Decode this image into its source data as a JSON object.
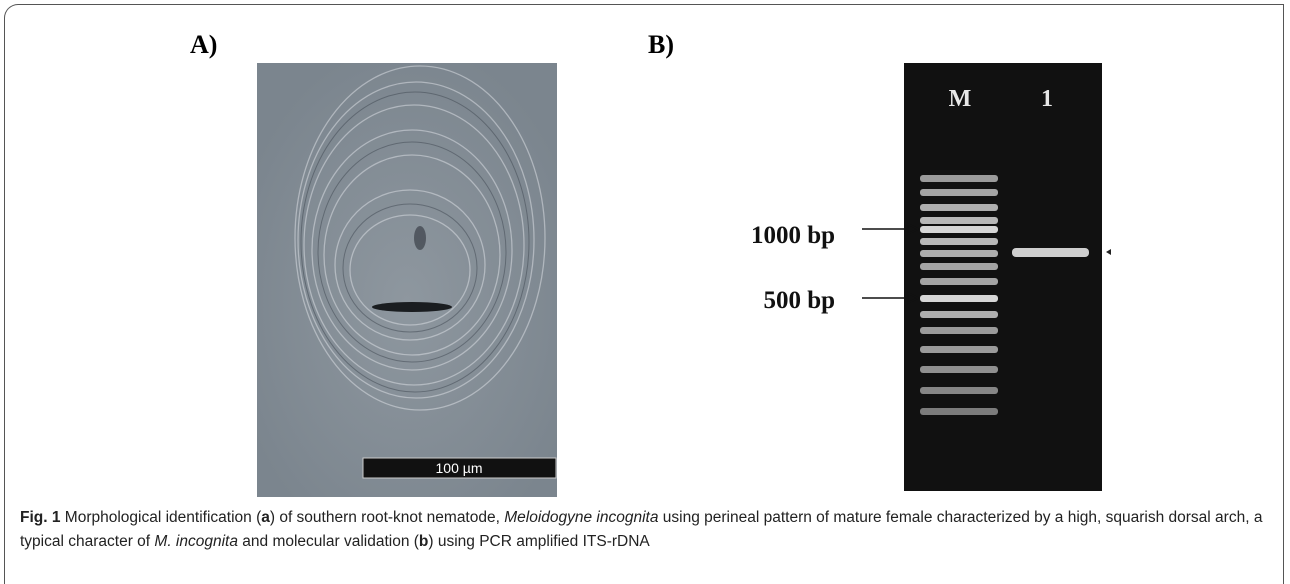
{
  "panel_a": {
    "label": "A)",
    "scale_bar": "100 µm"
  },
  "panel_b": {
    "label": "B)",
    "lanes": [
      "M",
      "1"
    ],
    "markers": [
      "1000 bp",
      "500 bp"
    ]
  },
  "caption": {
    "parts": [
      "Fig. 1",
      " Morphological identification (",
      "a",
      ") of southern root-knot nematode, ",
      "Meloidogyne incognita",
      " using perineal pattern of mature female characterized by a high, squarish dorsal arch, a typical character of ",
      "M. incognita",
      " and molecular validation (",
      "b",
      ") using PCR amplified ITS-rDNA"
    ]
  }
}
